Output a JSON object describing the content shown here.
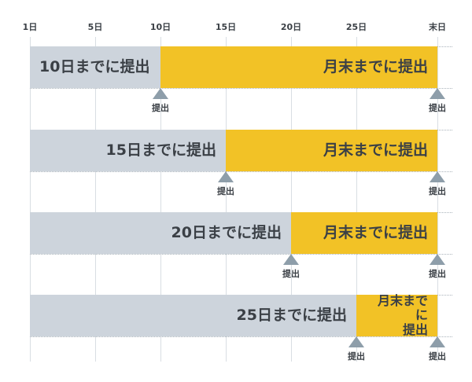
{
  "axis": {
    "ticks": [
      {
        "day": 1,
        "label": "1日"
      },
      {
        "day": 5,
        "label": "5日"
      },
      {
        "day": 10,
        "label": "10日"
      },
      {
        "day": 15,
        "label": "15日"
      },
      {
        "day": 20,
        "label": "20日"
      },
      {
        "day": 25,
        "label": "25日"
      },
      {
        "day": 31,
        "label": "末日"
      }
    ]
  },
  "rows": [
    {
      "deadline": 10,
      "first_label": "10日までに提出",
      "second_label": "月末までに提出",
      "marker_label": "提出",
      "end_marker_label": "提出"
    },
    {
      "deadline": 15,
      "first_label": "15日までに提出",
      "second_label": "月末までに提出",
      "marker_label": "提出",
      "end_marker_label": "提出"
    },
    {
      "deadline": 20,
      "first_label": "20日までに提出",
      "second_label": "月末までに提出",
      "marker_label": "提出",
      "end_marker_label": "提出"
    },
    {
      "deadline": 25,
      "first_label": "25日までに提出",
      "second_label": "月末までに\n提出",
      "marker_label": "提出",
      "end_marker_label": "提出"
    }
  ],
  "colors": {
    "first_period": "#cdd4dc",
    "second_period": "#f2c226",
    "marker": "#8e9eaa",
    "text": "#3b4046"
  }
}
